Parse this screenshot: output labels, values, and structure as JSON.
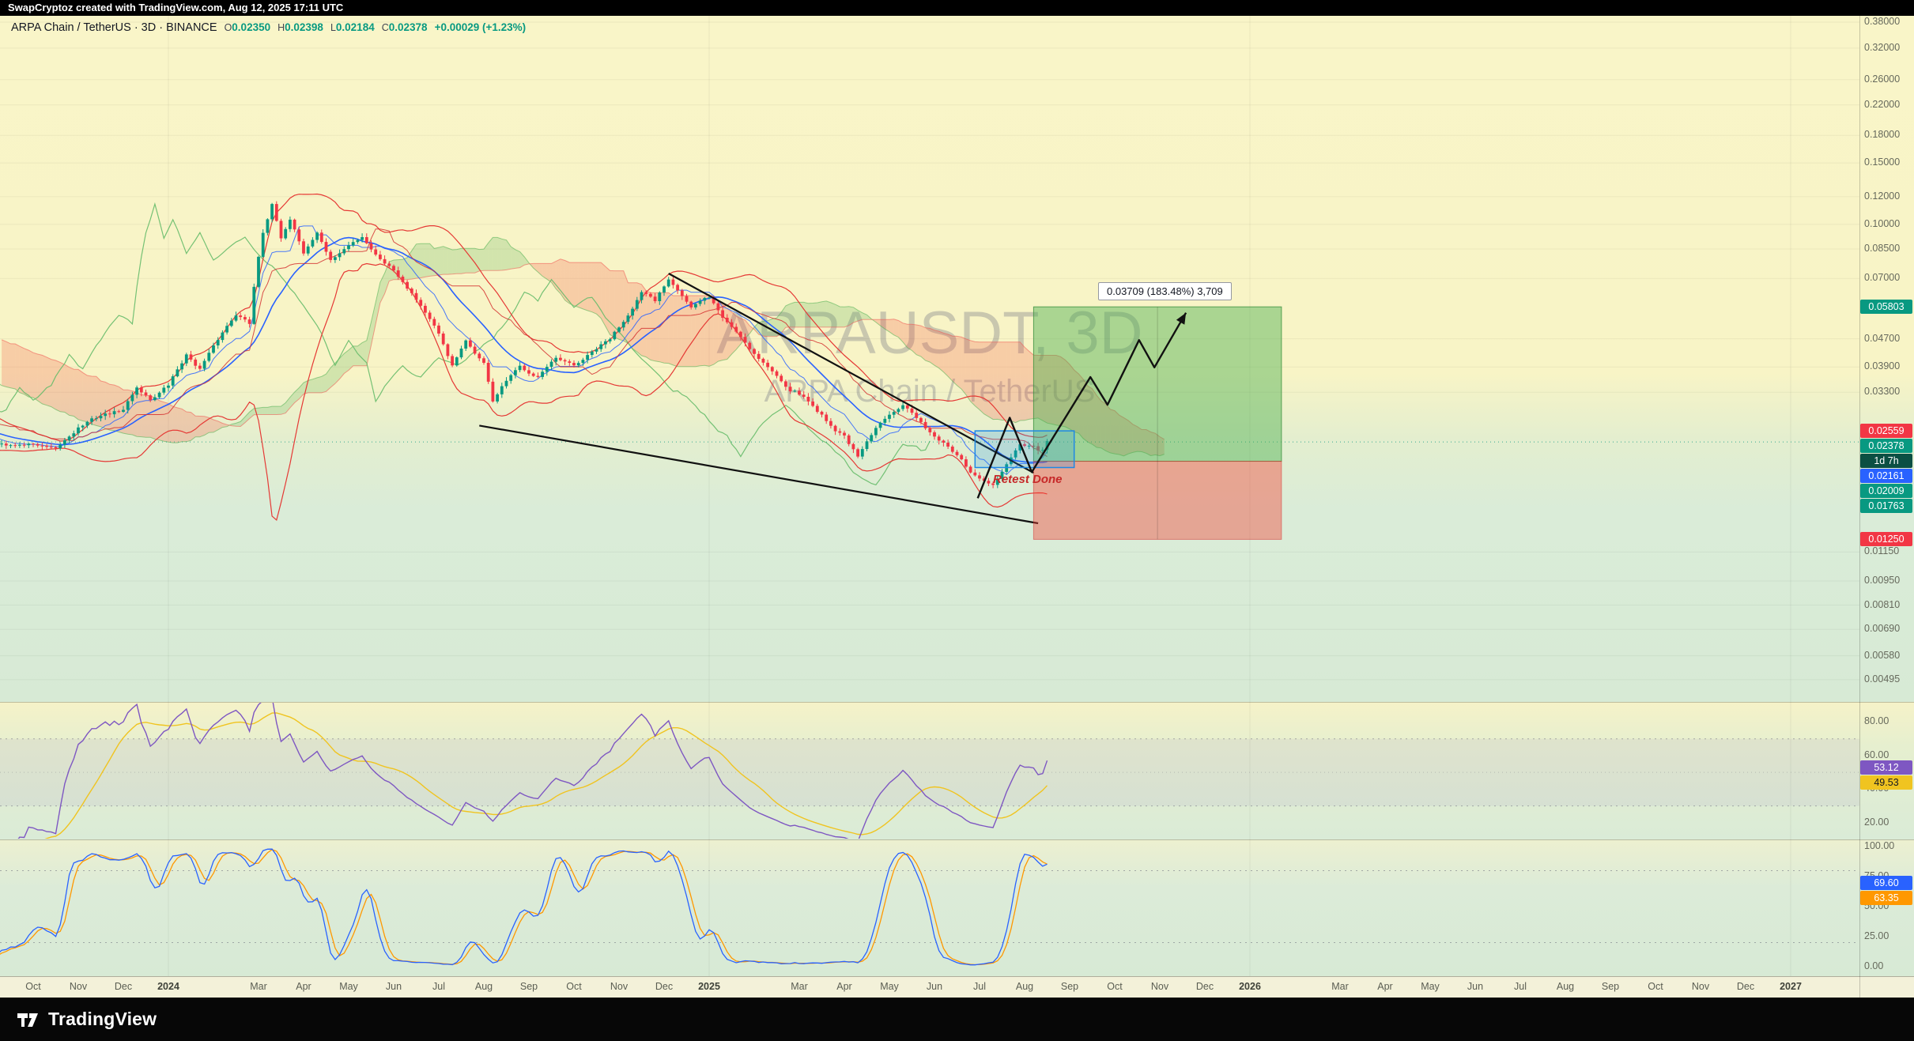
{
  "top_bar": {
    "text": "SwapCryptoz created with TradingView.com, Aug 12, 2025 17:11 UTC"
  },
  "header": {
    "symbol_line": "ARPA Chain / TetherUS · 3D · BINANCE",
    "ohlc": [
      {
        "label": "O",
        "value": "0.02350"
      },
      {
        "label": "H",
        "value": "0.02398"
      },
      {
        "label": "L",
        "value": "0.02184"
      },
      {
        "label": "C",
        "value": "0.02378"
      }
    ],
    "change": "+0.00029 (+1.23%)"
  },
  "watermark": {
    "line1": "ARPAUSDT, 3D",
    "line2": "ARPA Chain / TetherUS"
  },
  "annotations": {
    "profit_callout": "0.03709 (183.48%) 3,709",
    "retest_label": "Retest Done"
  },
  "footer": {
    "brand": "TradingView"
  },
  "colors": {
    "up": "#089981",
    "down": "#F23645",
    "bb_band": "#E53935",
    "bb_basis": "#2962FF",
    "tenkan": "#2962FF",
    "kijun": "#D32F2F",
    "chikou": "#66BB6A",
    "cloud_up": "rgba(76,175,80,0.22)",
    "cloud_down": "rgba(244,67,54,0.22)",
    "rsi": "#7E57C2",
    "rsi_ma": "#F0C420",
    "stoch_k": "#2962FF",
    "stoch_d": "#FF9800",
    "zone_fill": "rgba(33,150,243,0.22)",
    "zone_stroke": "#1E88E5",
    "target_fill": "rgba(76,175,80,0.45)",
    "stop_fill": "rgba(244,67,54,0.42)"
  },
  "price_axis": {
    "ticks": [
      "0.38000",
      "0.32000",
      "0.26000",
      "0.22000",
      "0.18000",
      "0.15000",
      "0.12000",
      "0.10000",
      "0.08500",
      "0.07000",
      "0.04700",
      "0.03900",
      "0.03300",
      "0.01150",
      "0.00950",
      "0.00810",
      "0.00690",
      "0.00580",
      "0.00495"
    ],
    "badges": [
      {
        "text": "0.05803",
        "price": 0.05803,
        "bg": "#089981",
        "fg": "#FFFFFF",
        "name": "target-price-badge"
      },
      {
        "text": "0.02559",
        "price": 0.02559,
        "bg": "#F23645",
        "fg": "#FFFFFF",
        "name": "upper-level-badge"
      },
      {
        "text": "0.02378",
        "price": 0.02378,
        "bg": "#089981",
        "fg": "#FFFFFF",
        "name": "last-price-badge"
      },
      {
        "text": "1d 7h",
        "price": 0.0229,
        "bg": "#0B4F43",
        "fg": "#FFFFFF",
        "name": "bar-countdown-badge"
      },
      {
        "text": "0.02161",
        "price": 0.02161,
        "bg": "#2962FF",
        "fg": "#FFFFFF",
        "name": "basis-level-badge"
      },
      {
        "text": "0.02009",
        "price": 0.02009,
        "bg": "#089981",
        "fg": "#FFFFFF",
        "name": "ichimoku-level-badge"
      },
      {
        "text": "0.01763",
        "price": 0.01763,
        "bg": "#089981",
        "fg": "#FFFFFF",
        "name": "ichimoku-level-badge"
      },
      {
        "text": "0.01250",
        "price": 0.0125,
        "bg": "#F23645",
        "fg": "#FFFFFF",
        "name": "stop-price-badge"
      }
    ]
  },
  "rsi_axis": {
    "ticks": [
      "80.00",
      "60.00",
      "40.00",
      "20.00"
    ],
    "badges": [
      {
        "text": "53.12",
        "bg": "#7E57C2",
        "fg": "#FFFFFF",
        "name": "rsi-value-badge"
      },
      {
        "text": "49.53",
        "bg": "#F0C420",
        "fg": "#131722",
        "name": "rsi-ma-value-badge"
      }
    ]
  },
  "stoch_axis": {
    "ticks": [
      "100.00",
      "75.00",
      "50.00",
      "25.00",
      "0.00"
    ],
    "badges": [
      {
        "text": "69.60",
        "bg": "#2962FF",
        "fg": "#FFFFFF",
        "name": "stoch-k-value-badge"
      },
      {
        "text": "63.35",
        "bg": "#FF9800",
        "fg": "#FFFFFF",
        "name": "stoch-d-value-badge"
      }
    ]
  },
  "time_axis": {
    "labels": [
      {
        "t": "Oct",
        "m": 0
      },
      {
        "t": "Nov",
        "m": 1
      },
      {
        "t": "Dec",
        "m": 2
      },
      {
        "t": "2024",
        "m": 3,
        "bold": true
      },
      {
        "t": "Mar",
        "m": 5
      },
      {
        "t": "Apr",
        "m": 6
      },
      {
        "t": "May",
        "m": 7
      },
      {
        "t": "Jun",
        "m": 8
      },
      {
        "t": "Jul",
        "m": 9
      },
      {
        "t": "Aug",
        "m": 10
      },
      {
        "t": "Sep",
        "m": 11
      },
      {
        "t": "Oct",
        "m": 12
      },
      {
        "t": "Nov",
        "m": 13
      },
      {
        "t": "Dec",
        "m": 14
      },
      {
        "t": "2025",
        "m": 15,
        "bold": true
      },
      {
        "t": "Mar",
        "m": 17
      },
      {
        "t": "Apr",
        "m": 18
      },
      {
        "t": "May",
        "m": 19
      },
      {
        "t": "Jun",
        "m": 20
      },
      {
        "t": "Jul",
        "m": 21
      },
      {
        "t": "Aug",
        "m": 22
      },
      {
        "t": "Sep",
        "m": 23
      },
      {
        "t": "Oct",
        "m": 24
      },
      {
        "t": "Nov",
        "m": 25
      },
      {
        "t": "Dec",
        "m": 26
      },
      {
        "t": "2026",
        "m": 27,
        "bold": true
      },
      {
        "t": "Mar",
        "m": 29
      },
      {
        "t": "Apr",
        "m": 30
      },
      {
        "t": "May",
        "m": 31
      },
      {
        "t": "Jun",
        "m": 32
      },
      {
        "t": "Jul",
        "m": 33
      },
      {
        "t": "Aug",
        "m": 34
      },
      {
        "t": "Sep",
        "m": 35
      },
      {
        "t": "Oct",
        "m": 36
      },
      {
        "t": "Nov",
        "m": 37
      },
      {
        "t": "Dec",
        "m": 38
      },
      {
        "t": "2027",
        "m": 39,
        "bold": true
      }
    ]
  },
  "chart_data": {
    "type": "candlestick",
    "symbol": "ARPAUSDT",
    "description": "ARPA Chain / TetherUS",
    "exchange": "BINANCE",
    "interval": "3D",
    "current_bar": {
      "open": 0.0235,
      "high": 0.02398,
      "low": 0.02184,
      "close": 0.02378,
      "change": 0.00029,
      "change_pct": 1.23
    },
    "bar_close_countdown": "1d 7h",
    "y_axis": {
      "type": "log",
      "top": 0.38,
      "bottom": 0.00495
    },
    "x_axis": {
      "start": "Oct 2023",
      "end": "2027"
    },
    "indicators": {
      "bollinger": {
        "length": 20,
        "mult": 2
      },
      "ichimoku": {
        "conversion": 9,
        "base": 26,
        "lagging": 52,
        "displacement": 26
      },
      "rsi": {
        "length": 14,
        "value": 53.12,
        "ma_value": 49.53
      },
      "stochastic": {
        "k": 14,
        "smooth": 3,
        "d": 3,
        "k_value": 69.6,
        "d_value": 63.35
      }
    },
    "long_position": {
      "entry": 0.02094,
      "target": 0.05803,
      "stop": 0.0125,
      "profit_amount": 0.03709,
      "profit_pct": 183.48,
      "profit_ticks": "3,709",
      "m_range": [
        22.2,
        27.7
      ]
    },
    "entry_zone": {
      "m": [
        20.9,
        23.1
      ],
      "p": [
        0.02009,
        0.02559
      ]
    },
    "trendlines": [
      {
        "from": {
          "m": 14.1,
          "p": 0.0723
        },
        "to": {
          "m": 22.2,
          "p": 0.0194
        }
      },
      {
        "from": {
          "m": 9.9,
          "p": 0.0265
        },
        "to": {
          "m": 22.3,
          "p": 0.0139
        }
      }
    ],
    "projection": [
      [
        20.96,
        0.0164
      ],
      [
        21.67,
        0.0279
      ],
      [
        22.16,
        0.0195
      ],
      [
        23.46,
        0.0365
      ],
      [
        23.84,
        0.0304
      ],
      [
        24.54,
        0.0466
      ],
      [
        24.88,
        0.0389
      ],
      [
        25.58,
        0.0558
      ]
    ],
    "price_path": [
      [
        -8.4,
        0.062
      ],
      [
        -7.2,
        0.054
      ],
      [
        -6.2,
        0.047
      ],
      [
        -5.2,
        0.041
      ],
      [
        -4.2,
        0.034
      ],
      [
        -3.2,
        0.0295
      ],
      [
        -2.2,
        0.0262
      ],
      [
        -1.2,
        0.0238
      ],
      [
        -0.6,
        0.0231
      ],
      [
        0,
        0.0235
      ],
      [
        0.5,
        0.0224
      ],
      [
        1,
        0.0262
      ],
      [
        1.5,
        0.0283
      ],
      [
        2,
        0.0293
      ],
      [
        2.3,
        0.0342
      ],
      [
        2.6,
        0.0315
      ],
      [
        3,
        0.0345
      ],
      [
        3.4,
        0.0422
      ],
      [
        3.7,
        0.0386
      ],
      [
        4,
        0.0443
      ],
      [
        4.5,
        0.0556
      ],
      [
        4.8,
        0.052
      ],
      [
        5.1,
        0.096
      ],
      [
        5.3,
        0.114
      ],
      [
        5.5,
        0.09
      ],
      [
        5.7,
        0.104
      ],
      [
        6,
        0.083
      ],
      [
        6.3,
        0.0945
      ],
      [
        6.6,
        0.0785
      ],
      [
        7,
        0.0868
      ],
      [
        7.3,
        0.0925
      ],
      [
        7.6,
        0.082
      ],
      [
        8,
        0.0742
      ],
      [
        8.4,
        0.064
      ],
      [
        8.7,
        0.0562
      ],
      [
        9,
        0.048
      ],
      [
        9.3,
        0.0392
      ],
      [
        9.6,
        0.0458
      ],
      [
        10,
        0.0398
      ],
      [
        10.2,
        0.0312
      ],
      [
        10.5,
        0.0354
      ],
      [
        10.8,
        0.0388
      ],
      [
        11.2,
        0.0368
      ],
      [
        11.6,
        0.0408
      ],
      [
        12,
        0.039
      ],
      [
        12.4,
        0.0428
      ],
      [
        12.8,
        0.0468
      ],
      [
        13.1,
        0.0528
      ],
      [
        13.5,
        0.0638
      ],
      [
        13.8,
        0.0598
      ],
      [
        14.1,
        0.07
      ],
      [
        14.3,
        0.0658
      ],
      [
        14.6,
        0.058
      ],
      [
        15,
        0.0618
      ],
      [
        15.3,
        0.054
      ],
      [
        15.7,
        0.0478
      ],
      [
        16,
        0.0428
      ],
      [
        16.4,
        0.0378
      ],
      [
        16.8,
        0.0338
      ],
      [
        17,
        0.0328
      ],
      [
        17.4,
        0.0293
      ],
      [
        17.8,
        0.0258
      ],
      [
        18,
        0.0248
      ],
      [
        18.3,
        0.0214
      ],
      [
        18.7,
        0.0258
      ],
      [
        19,
        0.0288
      ],
      [
        19.3,
        0.0308
      ],
      [
        19.7,
        0.0268
      ],
      [
        20,
        0.0248
      ],
      [
        20.4,
        0.0224
      ],
      [
        20.8,
        0.0194
      ],
      [
        21,
        0.0184
      ],
      [
        21.3,
        0.0177
      ],
      [
        21.6,
        0.0204
      ],
      [
        21.9,
        0.0233
      ],
      [
        22.2,
        0.0227
      ],
      [
        22.35,
        0.0218
      ],
      [
        22.5,
        0.0238
      ]
    ]
  }
}
